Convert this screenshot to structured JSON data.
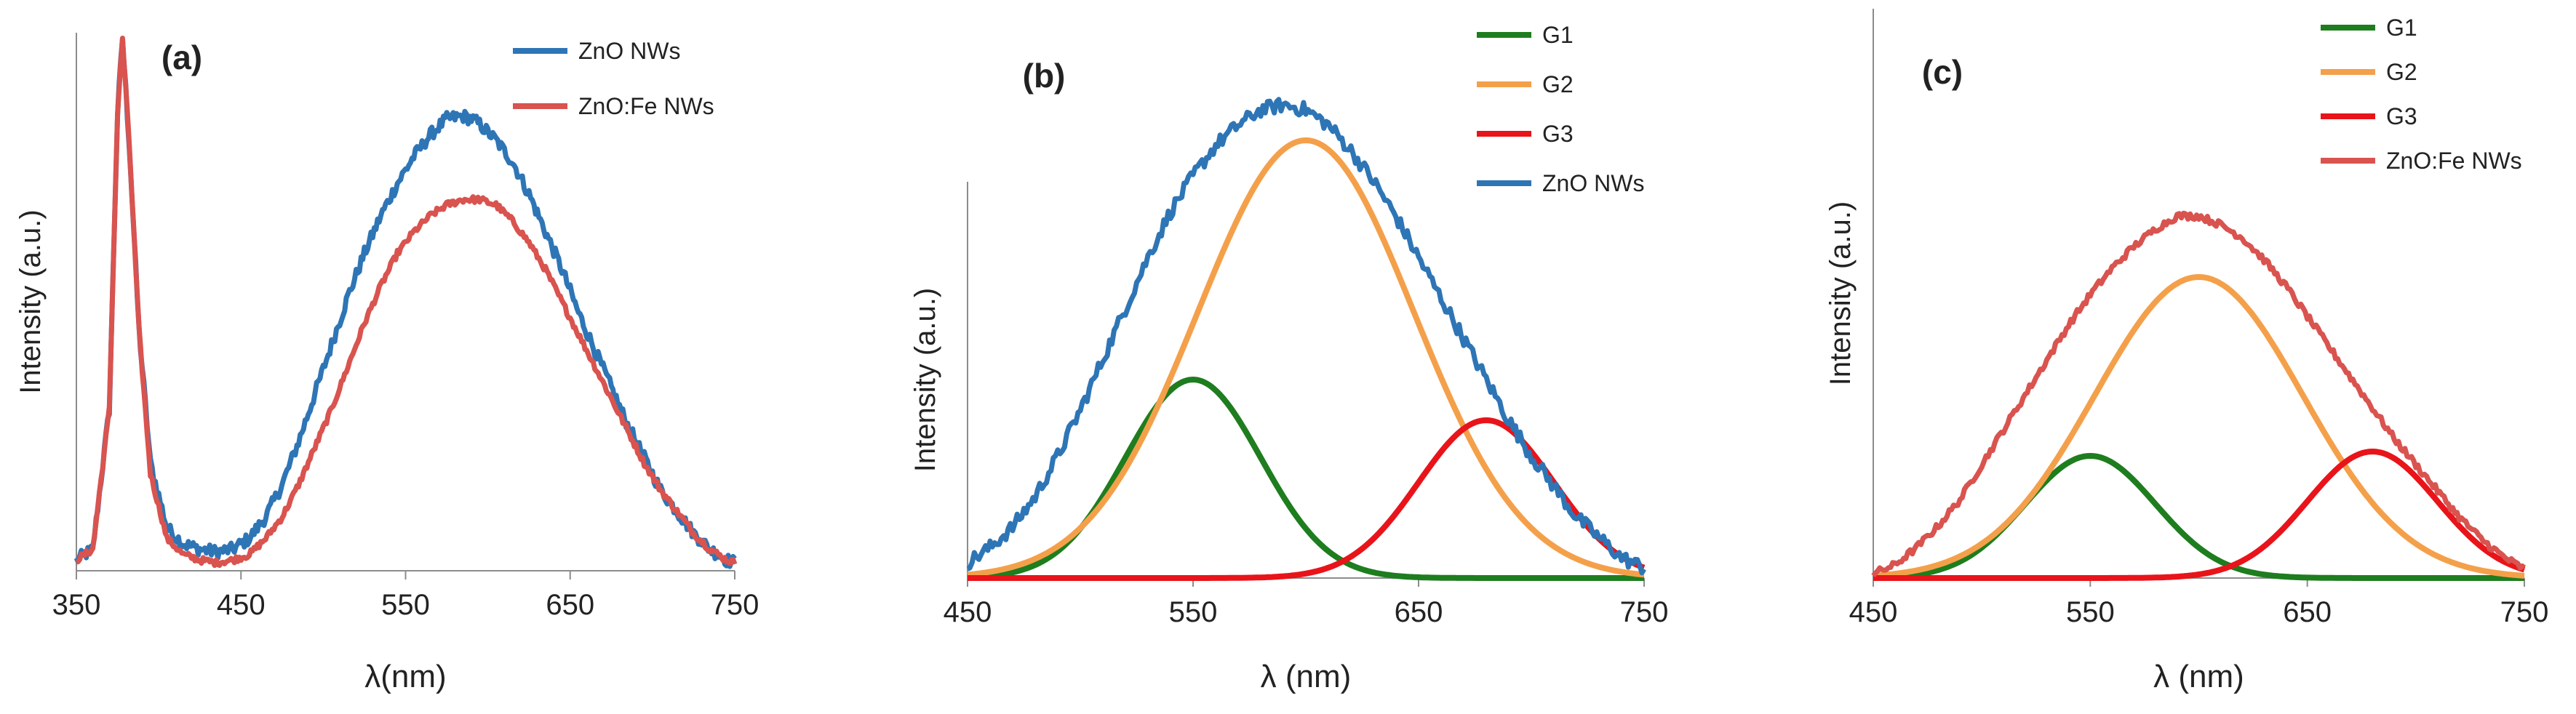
{
  "chart_data": [
    {
      "type": "line",
      "panel_label": "(a)",
      "xlabel": "λ(nm)",
      "ylabel": "Intensity (a.u.)",
      "xlim": [
        350,
        750
      ],
      "ylim": [
        0,
        1.0
      ],
      "xticks": [
        "350",
        "450",
        "550",
        "650",
        "750"
      ],
      "xtick_values": [
        350,
        450,
        550,
        650,
        750
      ],
      "legend": [
        "ZnO NWs",
        "ZnO:Fe NWs"
      ],
      "series": [
        {
          "name": "ZnO NWs",
          "color": "#2E75B6",
          "noise": 0.012,
          "x": [
            350,
            360,
            370,
            375,
            378,
            382,
            388,
            395,
            405,
            415,
            425,
            435,
            445,
            455,
            465,
            475,
            485,
            495,
            505,
            515,
            525,
            535,
            545,
            555,
            565,
            575,
            585,
            590,
            595,
            605,
            615,
            625,
            635,
            645,
            655,
            665,
            675,
            685,
            695,
            705,
            715,
            725,
            735,
            745,
            750
          ],
          "values": [
            0.02,
            0.04,
            0.3,
            0.85,
            0.99,
            0.8,
            0.45,
            0.2,
            0.08,
            0.05,
            0.04,
            0.035,
            0.04,
            0.06,
            0.1,
            0.16,
            0.24,
            0.33,
            0.42,
            0.51,
            0.59,
            0.66,
            0.72,
            0.77,
            0.81,
            0.84,
            0.845,
            0.84,
            0.83,
            0.8,
            0.76,
            0.7,
            0.63,
            0.56,
            0.48,
            0.41,
            0.34,
            0.27,
            0.21,
            0.15,
            0.11,
            0.07,
            0.04,
            0.02,
            0.015
          ]
        },
        {
          "name": "ZnO:Fe NWs",
          "color": "#D9534F",
          "noise": 0.006,
          "x": [
            350,
            360,
            370,
            375,
            378,
            382,
            388,
            395,
            405,
            415,
            425,
            435,
            445,
            455,
            465,
            475,
            485,
            495,
            505,
            515,
            525,
            535,
            545,
            555,
            565,
            575,
            585,
            595,
            605,
            615,
            625,
            635,
            645,
            655,
            665,
            675,
            685,
            695,
            705,
            715,
            725,
            735,
            745,
            750
          ],
          "values": [
            0.02,
            0.04,
            0.3,
            0.85,
            0.99,
            0.8,
            0.45,
            0.18,
            0.06,
            0.03,
            0.02,
            0.015,
            0.02,
            0.03,
            0.06,
            0.1,
            0.16,
            0.23,
            0.3,
            0.38,
            0.46,
            0.53,
            0.59,
            0.63,
            0.66,
            0.68,
            0.69,
            0.69,
            0.68,
            0.65,
            0.61,
            0.56,
            0.5,
            0.44,
            0.38,
            0.32,
            0.26,
            0.2,
            0.15,
            0.11,
            0.07,
            0.04,
            0.02,
            0.015
          ]
        }
      ]
    },
    {
      "type": "line",
      "panel_label": "(b)",
      "xlabel": "λ (nm)",
      "ylabel": "Intensity (a.u.)",
      "xlim": [
        450,
        750
      ],
      "ylim": [
        0,
        1.0
      ],
      "xticks": [
        "450",
        "550",
        "650",
        "750"
      ],
      "xtick_values": [
        450,
        550,
        650,
        750
      ],
      "legend": [
        "G1",
        "G2",
        "G3",
        "ZnO NWs"
      ],
      "series": [
        {
          "name": "G1",
          "color": "#1E7D1E",
          "gaussian": {
            "center": 550,
            "sigma": 30,
            "amplitude": 0.39
          }
        },
        {
          "name": "G2",
          "color": "#F4A04A",
          "gaussian": {
            "center": 600,
            "sigma": 48,
            "amplitude": 0.86
          }
        },
        {
          "name": "G3",
          "color": "#E8141A",
          "gaussian": {
            "center": 680,
            "sigma": 30,
            "amplitude": 0.31
          }
        },
        {
          "name": "ZnO NWs",
          "color": "#2E75B6",
          "noise": 0.014,
          "x": [
            450,
            460,
            470,
            480,
            490,
            500,
            510,
            520,
            530,
            540,
            550,
            560,
            570,
            580,
            590,
            600,
            610,
            620,
            630,
            640,
            650,
            660,
            670,
            680,
            690,
            700,
            710,
            720,
            730,
            740,
            750
          ],
          "values": [
            0.03,
            0.06,
            0.1,
            0.16,
            0.24,
            0.33,
            0.43,
            0.53,
            0.63,
            0.72,
            0.79,
            0.85,
            0.89,
            0.92,
            0.93,
            0.92,
            0.89,
            0.84,
            0.78,
            0.71,
            0.63,
            0.55,
            0.47,
            0.39,
            0.31,
            0.24,
            0.18,
            0.12,
            0.08,
            0.04,
            0.02
          ]
        }
      ]
    },
    {
      "type": "line",
      "panel_label": "(c)",
      "xlabel": "λ (nm)",
      "ylabel": "Intensity (a.u.)",
      "xlim": [
        450,
        750
      ],
      "ylim": [
        0,
        1.0
      ],
      "xticks": [
        "450",
        "550",
        "650",
        "750"
      ],
      "xtick_values": [
        450,
        550,
        650,
        750
      ],
      "legend": [
        "G1",
        "G2",
        "G3",
        "ZnO:Fe NWs"
      ],
      "series": [
        {
          "name": "G1",
          "color": "#1E7D1E",
          "gaussian": {
            "center": 550,
            "sigma": 30,
            "amplitude": 0.28
          }
        },
        {
          "name": "G2",
          "color": "#F4A04A",
          "gaussian": {
            "center": 600,
            "sigma": 48,
            "amplitude": 0.69
          }
        },
        {
          "name": "G3",
          "color": "#E8141A",
          "gaussian": {
            "center": 680,
            "sigma": 30,
            "amplitude": 0.29
          }
        },
        {
          "name": "ZnO:Fe NWs",
          "color": "#D9534F",
          "noise": 0.008,
          "x": [
            450,
            460,
            470,
            480,
            490,
            500,
            510,
            520,
            530,
            540,
            550,
            560,
            570,
            580,
            590,
            600,
            610,
            620,
            630,
            640,
            650,
            660,
            670,
            680,
            690,
            700,
            710,
            720,
            730,
            740,
            750
          ],
          "values": [
            0.01,
            0.03,
            0.07,
            0.12,
            0.18,
            0.26,
            0.34,
            0.42,
            0.5,
            0.58,
            0.65,
            0.71,
            0.76,
            0.8,
            0.83,
            0.83,
            0.81,
            0.78,
            0.73,
            0.67,
            0.6,
            0.53,
            0.46,
            0.39,
            0.32,
            0.26,
            0.2,
            0.14,
            0.09,
            0.05,
            0.02
          ]
        }
      ]
    }
  ]
}
